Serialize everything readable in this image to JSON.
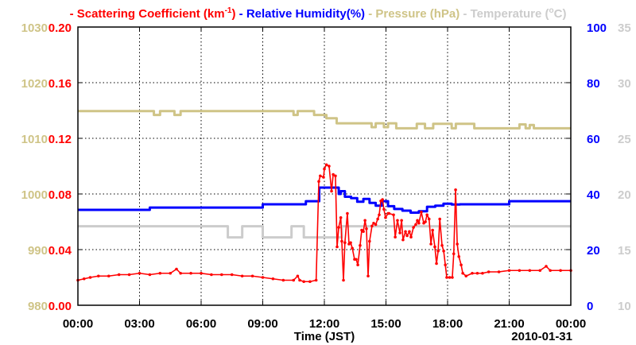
{
  "chart_data": {
    "type": "line",
    "legend": [
      {
        "name": "- Scattering Coefficient (km",
        "sup": "-1",
        "tail": ")",
        "color": "#ff0000"
      },
      {
        "name": "- Relative Humidity(%)",
        "color": "#0000ff"
      },
      {
        "name": "- Pressure (hPa)",
        "color": "#cfc487"
      },
      {
        "name": "- Temperature (",
        "sup": "o",
        "tail": "C)",
        "color": "#cccccc"
      }
    ],
    "xlabel": "Time (JST)",
    "date_label": "2010-01-31",
    "x_range": [
      0,
      24
    ],
    "x_ticks": [
      {
        "v": 0,
        "label": "00:00"
      },
      {
        "v": 3,
        "label": "03:00"
      },
      {
        "v": 6,
        "label": "06:00"
      },
      {
        "v": 9,
        "label": "09:00"
      },
      {
        "v": 12,
        "label": "12:00"
      },
      {
        "v": 15,
        "label": "15:00"
      },
      {
        "v": 18,
        "label": "18:00"
      },
      {
        "v": 21,
        "label": "21:00"
      },
      {
        "v": 24,
        "label": "00:00"
      }
    ],
    "axes": {
      "pressure": {
        "range": [
          980,
          1030
        ],
        "ticks": [
          "980",
          "990",
          "1000",
          "1010",
          "1020",
          "1030"
        ],
        "color": "#cfc487"
      },
      "scattering": {
        "range": [
          0,
          0.2
        ],
        "ticks": [
          "0.00",
          "0.04",
          "0.08",
          "0.12",
          "0.16",
          "0.20"
        ],
        "color": "#ff0000"
      },
      "humidity": {
        "range": [
          0,
          100
        ],
        "ticks": [
          "0",
          "20",
          "40",
          "60",
          "80",
          "100"
        ],
        "color": "#0000ff"
      },
      "temperature": {
        "range": [
          10,
          35
        ],
        "ticks": [
          "10",
          "15",
          "20",
          "25",
          "30",
          "35"
        ],
        "color": "#cccccc"
      }
    },
    "grid": true,
    "series": [
      {
        "name": "Scattering Coefficient",
        "axis": "scattering",
        "color": "#ff0000",
        "markers": true,
        "points": [
          [
            0,
            0.018
          ],
          [
            0.3,
            0.019
          ],
          [
            0.6,
            0.02
          ],
          [
            1,
            0.021
          ],
          [
            1.5,
            0.021
          ],
          [
            2,
            0.022
          ],
          [
            2.5,
            0.022
          ],
          [
            3,
            0.023
          ],
          [
            3.5,
            0.022
          ],
          [
            4,
            0.023
          ],
          [
            4.5,
            0.023
          ],
          [
            4.8,
            0.026
          ],
          [
            5,
            0.023
          ],
          [
            5.5,
            0.023
          ],
          [
            6,
            0.023
          ],
          [
            6.5,
            0.022
          ],
          [
            7,
            0.022
          ],
          [
            7.5,
            0.022
          ],
          [
            8,
            0.021
          ],
          [
            8.5,
            0.021
          ],
          [
            9,
            0.02
          ],
          [
            9.5,
            0.019
          ],
          [
            10,
            0.018
          ],
          [
            10.5,
            0.018
          ],
          [
            10.7,
            0.021
          ],
          [
            10.8,
            0.018
          ],
          [
            11,
            0.017
          ],
          [
            11.3,
            0.017
          ],
          [
            11.6,
            0.018
          ],
          [
            11.73,
            0.089
          ],
          [
            11.8,
            0.093
          ],
          [
            11.96,
            0.092
          ],
          [
            12.0,
            0.098
          ],
          [
            12.1,
            0.101
          ],
          [
            12.23,
            0.1
          ],
          [
            12.35,
            0.082
          ],
          [
            12.43,
            0.094
          ],
          [
            12.54,
            0.093
          ],
          [
            12.62,
            0.042
          ],
          [
            12.7,
            0.056
          ],
          [
            12.8,
            0.063
          ],
          [
            12.85,
            0.046
          ],
          [
            12.93,
            0.018
          ],
          [
            13.0,
            0.045
          ],
          [
            13.12,
            0.066
          ],
          [
            13.2,
            0.044
          ],
          [
            13.28,
            0.045
          ],
          [
            13.36,
            0.041
          ],
          [
            13.47,
            0.033
          ],
          [
            13.55,
            0.033
          ],
          [
            13.63,
            0.029
          ],
          [
            13.74,
            0.043
          ],
          [
            13.82,
            0.054
          ],
          [
            13.9,
            0.053
          ],
          [
            13.98,
            0.061
          ],
          [
            14.05,
            0.055
          ],
          [
            14.13,
            0.021
          ],
          [
            14.2,
            0.046
          ],
          [
            14.32,
            0.057
          ],
          [
            14.4,
            0.059
          ],
          [
            14.5,
            0.058
          ],
          [
            14.6,
            0.062
          ],
          [
            14.67,
            0.065
          ],
          [
            14.75,
            0.075
          ],
          [
            14.83,
            0.076
          ],
          [
            14.9,
            0.069
          ],
          [
            14.98,
            0.063
          ],
          [
            15.1,
            0.066
          ],
          [
            15.15,
            0.066
          ],
          [
            15.37,
            0.065
          ],
          [
            15.45,
            0.049
          ],
          [
            15.56,
            0.061
          ],
          [
            15.68,
            0.052
          ],
          [
            15.76,
            0.061
          ],
          [
            15.83,
            0.047
          ],
          [
            15.95,
            0.053
          ],
          [
            16.03,
            0.05
          ],
          [
            16.14,
            0.053
          ],
          [
            16.22,
            0.049
          ],
          [
            16.34,
            0.056
          ],
          [
            16.45,
            0.058
          ],
          [
            16.53,
            0.061
          ],
          [
            16.6,
            0.059
          ],
          [
            16.72,
            0.067
          ],
          [
            16.84,
            0.059
          ],
          [
            16.92,
            0.06
          ],
          [
            17.0,
            0.065
          ],
          [
            17.1,
            0.062
          ],
          [
            17.19,
            0.044
          ],
          [
            17.27,
            0.054
          ],
          [
            17.38,
            0.042
          ],
          [
            17.46,
            0.03
          ],
          [
            17.54,
            0.039
          ],
          [
            17.62,
            0.062
          ],
          [
            17.73,
            0.043
          ],
          [
            17.81,
            0.039
          ],
          [
            17.89,
            0.029
          ],
          [
            17.96,
            0.02
          ],
          [
            18.1,
            0.02
          ],
          [
            18.23,
            0.02
          ],
          [
            18.3,
            0.037
          ],
          [
            18.39,
            0.083
          ],
          [
            18.47,
            0.044
          ],
          [
            18.55,
            0.035
          ],
          [
            18.66,
            0.029
          ],
          [
            18.74,
            0.023
          ],
          [
            18.9,
            0.021
          ],
          [
            19.2,
            0.023
          ],
          [
            19.45,
            0.023
          ],
          [
            19.7,
            0.023
          ],
          [
            20,
            0.024
          ],
          [
            20.5,
            0.024
          ],
          [
            21,
            0.025
          ],
          [
            21.5,
            0.025
          ],
          [
            22,
            0.025
          ],
          [
            22.5,
            0.025
          ],
          [
            22.8,
            0.028
          ],
          [
            23,
            0.025
          ],
          [
            23.5,
            0.025
          ],
          [
            24,
            0.025
          ]
        ]
      },
      {
        "name": "Relative Humidity",
        "axis": "humidity",
        "color": "#0000ff",
        "step": true,
        "points": [
          [
            0,
            34.3
          ],
          [
            3.5,
            35.1
          ],
          [
            9,
            36.3
          ],
          [
            11.1,
            37.4
          ],
          [
            11.75,
            42.3
          ],
          [
            12.6,
            42.3
          ],
          [
            12.7,
            40
          ],
          [
            12.8,
            41
          ],
          [
            13,
            39
          ],
          [
            13.3,
            38.5
          ],
          [
            13.6,
            37.2
          ],
          [
            13.9,
            38.2
          ],
          [
            14.2,
            36.8
          ],
          [
            14.5,
            35.8
          ],
          [
            14.8,
            37.4
          ],
          [
            15.1,
            35.6
          ],
          [
            15.4,
            34.6
          ],
          [
            15.8,
            34.0
          ],
          [
            16.2,
            33.3
          ],
          [
            16.6,
            33.8
          ],
          [
            17,
            35.4
          ],
          [
            17.4,
            35.8
          ],
          [
            17.8,
            36.5
          ],
          [
            18.2,
            36.2
          ],
          [
            18.6,
            36.3
          ],
          [
            21,
            37.4
          ],
          [
            24,
            37.4
          ]
        ]
      },
      {
        "name": "Pressure",
        "axis": "pressure",
        "color": "#cfc487",
        "step": true,
        "points": [
          [
            0,
            1014.9
          ],
          [
            3.7,
            1014.2
          ],
          [
            4.0,
            1014.9
          ],
          [
            4.7,
            1014.2
          ],
          [
            5.0,
            1014.9
          ],
          [
            10.5,
            1014.2
          ],
          [
            10.7,
            1014.9
          ],
          [
            11.5,
            1014.2
          ],
          [
            12.1,
            1013.6
          ],
          [
            12.6,
            1012.7
          ],
          [
            14.3,
            1012.0
          ],
          [
            14.5,
            1012.7
          ],
          [
            14.9,
            1012.0
          ],
          [
            15.1,
            1012.7
          ],
          [
            15.5,
            1011.8
          ],
          [
            16.5,
            1012.6
          ],
          [
            16.9,
            1011.8
          ],
          [
            17.3,
            1012.6
          ],
          [
            18.2,
            1011.8
          ],
          [
            18.4,
            1012.6
          ],
          [
            19.3,
            1011.8
          ],
          [
            21.5,
            1012.5
          ],
          [
            21.8,
            1011.8
          ],
          [
            22,
            1012.4
          ],
          [
            22.2,
            1011.8
          ],
          [
            24,
            1011.8
          ]
        ]
      },
      {
        "name": "Temperature",
        "axis": "temperature",
        "color": "#cccccc",
        "step": true,
        "points": [
          [
            0,
            17.1
          ],
          [
            7.3,
            16.1
          ],
          [
            8.0,
            17.1
          ],
          [
            9.0,
            16.1
          ],
          [
            10.4,
            17.1
          ],
          [
            11.0,
            16.1
          ],
          [
            12.85,
            17.1
          ],
          [
            24,
            17.1
          ]
        ]
      }
    ]
  }
}
